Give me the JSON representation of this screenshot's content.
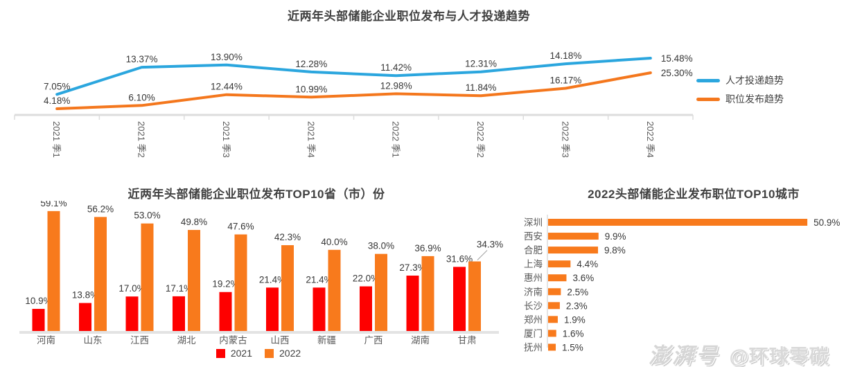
{
  "watermark": {
    "brand": "澎湃号",
    "account": "@环球零碳"
  },
  "colors": {
    "talent_line": "#2BA6DE",
    "position_line": "#F4771D",
    "bar_2021": "#FE0000",
    "bar_2022": "#F87A1C",
    "axis": "#DCDCDC",
    "title_text": "#404040",
    "axis_label": "#595959",
    "value_label": "#363636",
    "leader_line": "#9E9E9E"
  },
  "chart_data": [
    {
      "id": "trend_line",
      "type": "line",
      "title": "近两年头部储能企业职位发布与人才投递趋势",
      "categories": [
        "2021 季1",
        "2021 季2",
        "2021 季3",
        "2021 季4",
        "2022 季1",
        "2022 季2",
        "2022 季3",
        "2022 季4"
      ],
      "series": [
        {
          "name": "人才投递趋势",
          "color": "#2BA6DE",
          "values": [
            7.05,
            13.37,
            13.9,
            12.28,
            11.42,
            12.31,
            14.18,
            15.48
          ]
        },
        {
          "name": "职位发布趋势",
          "color": "#F4771D",
          "values": [
            4.18,
            6.1,
            12.44,
            10.99,
            12.98,
            11.84,
            16.17,
            25.3
          ]
        }
      ],
      "value_suffix": "%",
      "decimals": 2,
      "legend_position": "right",
      "grid": false
    },
    {
      "id": "province_bar",
      "type": "bar",
      "title": "近两年头部储能企业职位发布TOP10省（市）份",
      "categories": [
        "河南",
        "山东",
        "江西",
        "湖北",
        "内蒙古",
        "山西",
        "新疆",
        "广西",
        "湖南",
        "甘肃"
      ],
      "series": [
        {
          "name": "2021",
          "color": "#FE0000",
          "values": [
            10.9,
            13.8,
            17.0,
            17.1,
            19.2,
            21.4,
            21.4,
            22.0,
            27.3,
            31.6
          ]
        },
        {
          "name": "2022",
          "color": "#F87A1C",
          "values": [
            59.1,
            56.2,
            53.0,
            49.8,
            47.6,
            42.3,
            40.0,
            38.0,
            36.9,
            34.3
          ]
        }
      ],
      "value_suffix": "%",
      "decimals": 1,
      "legend_position": "bottom",
      "grid": false
    },
    {
      "id": "city_hbar",
      "type": "hbar",
      "title": "2022头部储能企业发布职位TOP10城市",
      "categories": [
        "深圳",
        "西安",
        "合肥",
        "上海",
        "惠州",
        "济南",
        "长沙",
        "郑州",
        "厦门",
        "抚州"
      ],
      "values": [
        50.9,
        9.9,
        9.8,
        4.4,
        3.6,
        2.5,
        2.3,
        1.9,
        1.6,
        1.5
      ],
      "color": "#F87A1C",
      "value_suffix": "%",
      "decimals": 1,
      "grid": false
    }
  ]
}
